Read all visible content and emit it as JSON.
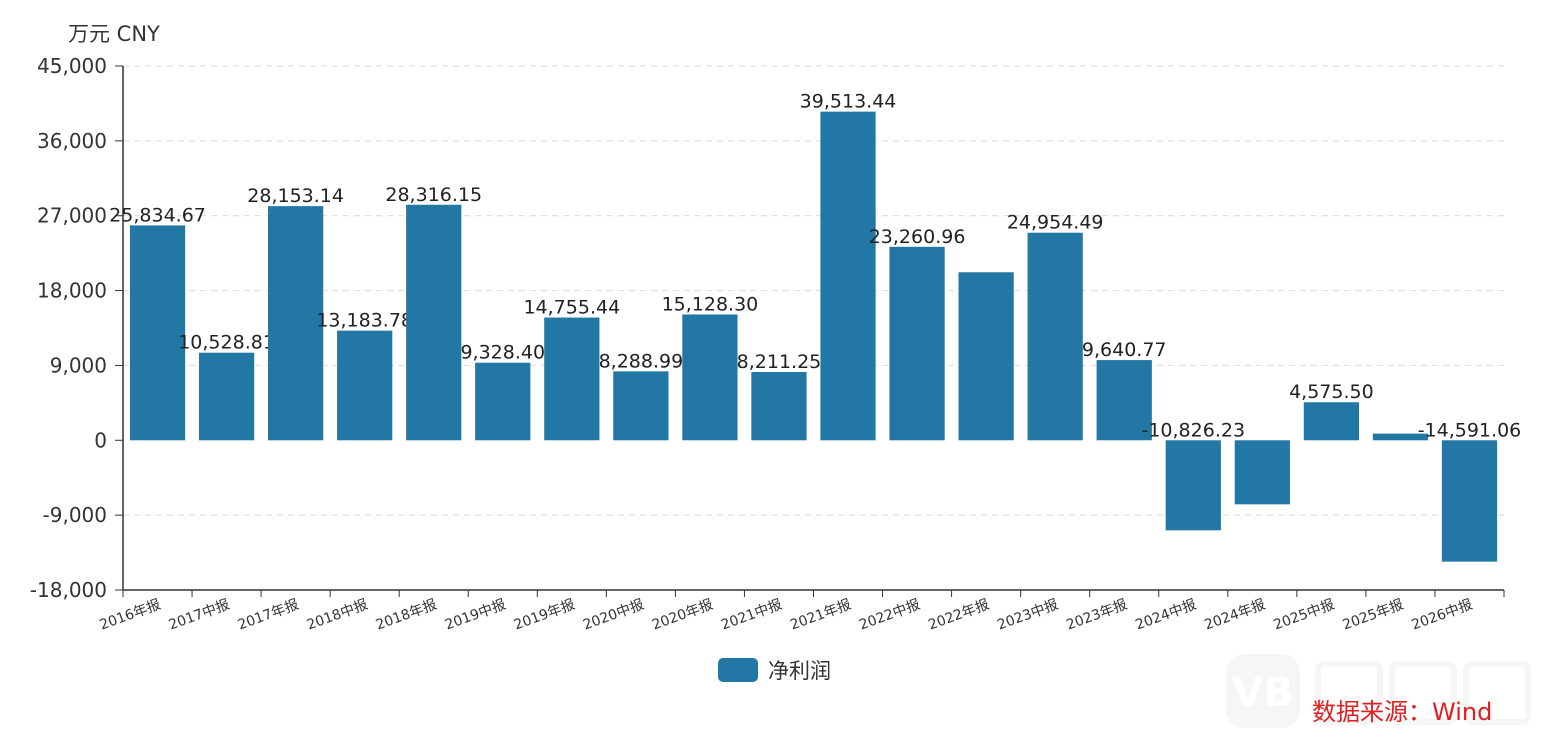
{
  "unit_label": "万元 CNY",
  "source_text": "数据来源：Wind",
  "colors": {
    "bar": "#2277a4",
    "source": "#e02020",
    "axis": "#333333",
    "grid": "#d9d9d9"
  },
  "chart_data": {
    "type": "bar",
    "title": "",
    "xlabel": "",
    "ylabel": "万元 CNY",
    "ylim": [
      -18000,
      45000
    ],
    "yticks": [
      45000,
      36000,
      27000,
      18000,
      9000,
      0,
      -9000,
      -18000
    ],
    "ytick_labels": [
      "45,000",
      "36,000",
      "27,000",
      "18,000",
      "9,000",
      "0",
      "-9,000",
      "-18,000"
    ],
    "grid": true,
    "legend_position": "bottom-center",
    "categories": [
      "2016年报",
      "2017中报",
      "2017年报",
      "2018中报",
      "2018年报",
      "2019中报",
      "2019年报",
      "2020中报",
      "2020年报",
      "2021中报",
      "2021年报",
      "2022中报",
      "2022年报",
      "2023中报",
      "2023年报",
      "2024中报",
      "2024年报",
      "2025中报",
      "2025年报",
      "2026中报"
    ],
    "series": [
      {
        "name": "净利润",
        "values": [
          25834.67,
          10528.81,
          28153.14,
          13183.78,
          28316.15,
          9328.4,
          14755.44,
          8288.99,
          15128.3,
          8211.25,
          39513.44,
          23260.96,
          20200,
          24954.49,
          9640.77,
          -10826.23,
          -7700,
          4575.5,
          800,
          -14591.06
        ],
        "data_labels": [
          "25,834.67",
          "10,528.81",
          "28,153.14",
          "13,183.78",
          "28,316.15",
          "9,328.40",
          "14,755.44",
          "8,288.99",
          "15,128.30",
          "8,211.25",
          "39,513.44",
          "23,260.96",
          "",
          "24,954.49",
          "9,640.77",
          "-10,826.23",
          "",
          "4,575.50",
          "",
          "-14,591.06"
        ]
      }
    ]
  }
}
